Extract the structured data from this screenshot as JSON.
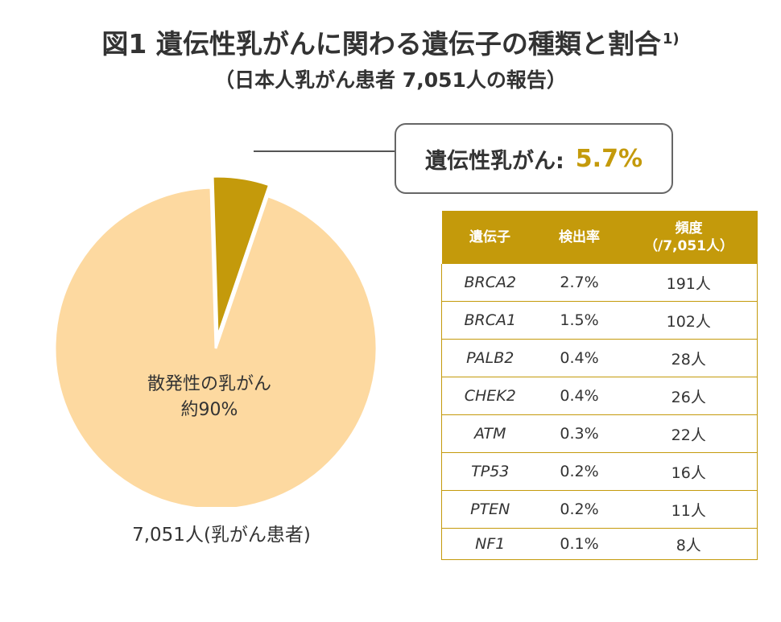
{
  "header": {
    "title": "図1 遺伝性乳がんに関わる遺伝子の種類と割合",
    "title_ref": "1)",
    "subtitle": "（日本人乳がん患者 7,051人の報告）"
  },
  "callout": {
    "label": "遺伝性乳がん:",
    "value": "5.7%"
  },
  "pie_labels": {
    "sporadic_line1": "散発性の乳がん",
    "sporadic_line2": "約90%",
    "total": "7,051人(乳がん患者)"
  },
  "colors": {
    "hereditary": "#c49a0b",
    "sporadic": "#fdd9a0",
    "table_header": "#c49a0b"
  },
  "chart_data": {
    "type": "pie",
    "title": "遺伝性乳がんに関わる遺伝子の種類と割合",
    "slices": [
      {
        "label": "遺伝性乳がん",
        "value": 5.7,
        "color": "#c49a0b",
        "exploded": true
      },
      {
        "label": "散発性の乳がん",
        "value": 94.3,
        "color": "#fdd9a0",
        "exploded": false
      }
    ],
    "total_patients": 7051
  },
  "table": {
    "headers": {
      "gene": "遺伝子",
      "rate": "検出率",
      "freq_line1": "頻度",
      "freq_line2": "（/7,051人）"
    },
    "rows": [
      {
        "gene": "BRCA2",
        "rate": "2.7%",
        "freq": "191人"
      },
      {
        "gene": "BRCA1",
        "rate": "1.5%",
        "freq": "102人"
      },
      {
        "gene": "PALB2",
        "rate": "0.4%",
        "freq": "28人"
      },
      {
        "gene": "CHEK2",
        "rate": "0.4%",
        "freq": "26人"
      },
      {
        "gene": "ATM",
        "rate": "0.3%",
        "freq": "22人"
      },
      {
        "gene": "TP53",
        "rate": "0.2%",
        "freq": "16人"
      },
      {
        "gene": "PTEN",
        "rate": "0.2%",
        "freq": "11人"
      },
      {
        "gene": "NF1",
        "rate": "0.1%",
        "freq": "8人"
      }
    ]
  }
}
